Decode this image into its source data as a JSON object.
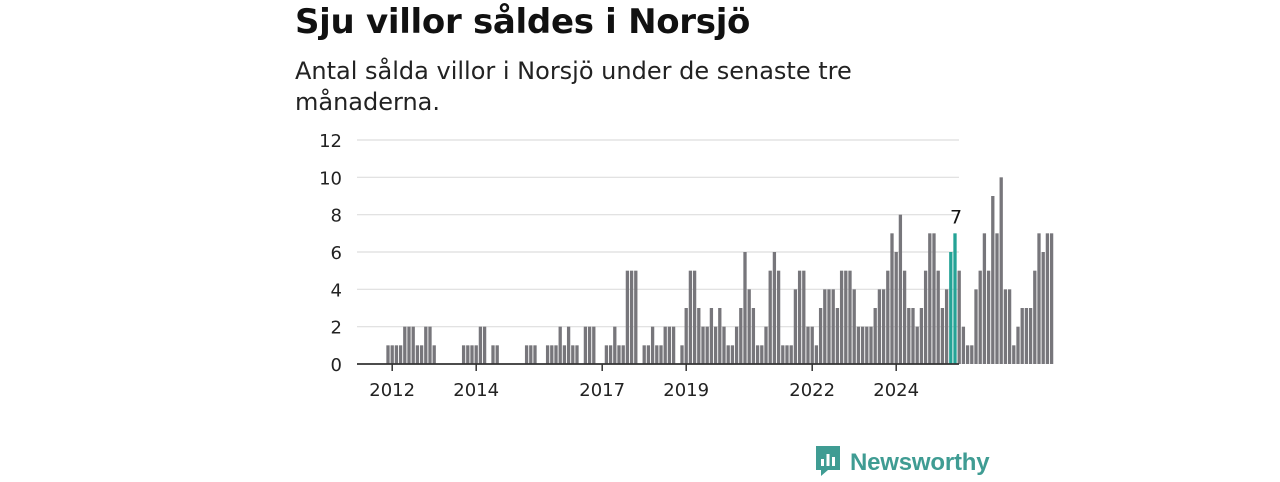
{
  "title": "Sju villor såldes i Norsjö",
  "subtitle": "Antal sålda villor i Norsjö under de senaste tre månaderna.",
  "brand": {
    "name": "Newsworthy",
    "icon": "newsworthy-logo-icon",
    "color": "#3f9c93"
  },
  "chart_data": {
    "type": "bar",
    "title": "Sju villor såldes i Norsjö",
    "subtitle": "Antal sålda villor i Norsjö under de senaste tre månaderna.",
    "xlabel": "",
    "ylabel": "",
    "ylim": [
      0,
      12
    ],
    "yticks": [
      0,
      2,
      4,
      6,
      8,
      10,
      12
    ],
    "xticks": [
      {
        "label": "2012",
        "index": 1
      },
      {
        "label": "2014",
        "index": 21
      },
      {
        "label": "2017",
        "index": 51
      },
      {
        "label": "2019",
        "index": 71
      },
      {
        "label": "2022",
        "index": 101
      },
      {
        "label": "2024",
        "index": 121
      }
    ],
    "grid": true,
    "bar_color": "#77767b",
    "highlight_color": "#24a396",
    "highlight_indices": [
      134,
      135
    ],
    "annotation": {
      "text": "7",
      "index": 135
    },
    "values": [
      1,
      1,
      1,
      1,
      2,
      2,
      2,
      1,
      1,
      2,
      2,
      1,
      0,
      0,
      0,
      0,
      0,
      0,
      1,
      1,
      1,
      1,
      2,
      2,
      0,
      1,
      1,
      0,
      0,
      0,
      0,
      0,
      0,
      1,
      1,
      1,
      0,
      0,
      1,
      1,
      1,
      2,
      1,
      2,
      1,
      1,
      0,
      2,
      2,
      2,
      0,
      0,
      1,
      1,
      2,
      1,
      1,
      5,
      5,
      5,
      0,
      1,
      1,
      2,
      1,
      1,
      2,
      2,
      2,
      0,
      1,
      3,
      5,
      5,
      3,
      2,
      2,
      3,
      2,
      3,
      2,
      1,
      1,
      2,
      3,
      6,
      4,
      3,
      1,
      1,
      2,
      5,
      6,
      5,
      1,
      1,
      1,
      4,
      5,
      5,
      2,
      2,
      1,
      3,
      4,
      4,
      4,
      3,
      5,
      5,
      5,
      4,
      2,
      2,
      2,
      2,
      3,
      4,
      4,
      5,
      7,
      6,
      8,
      5,
      3,
      3,
      2,
      3,
      5,
      7,
      7,
      5,
      3,
      4,
      6,
      7,
      5,
      2,
      1,
      1,
      4,
      5,
      7,
      5,
      9,
      7,
      10,
      4,
      4,
      1,
      2,
      3,
      3,
      3,
      5,
      7,
      6,
      7,
      7
    ]
  }
}
